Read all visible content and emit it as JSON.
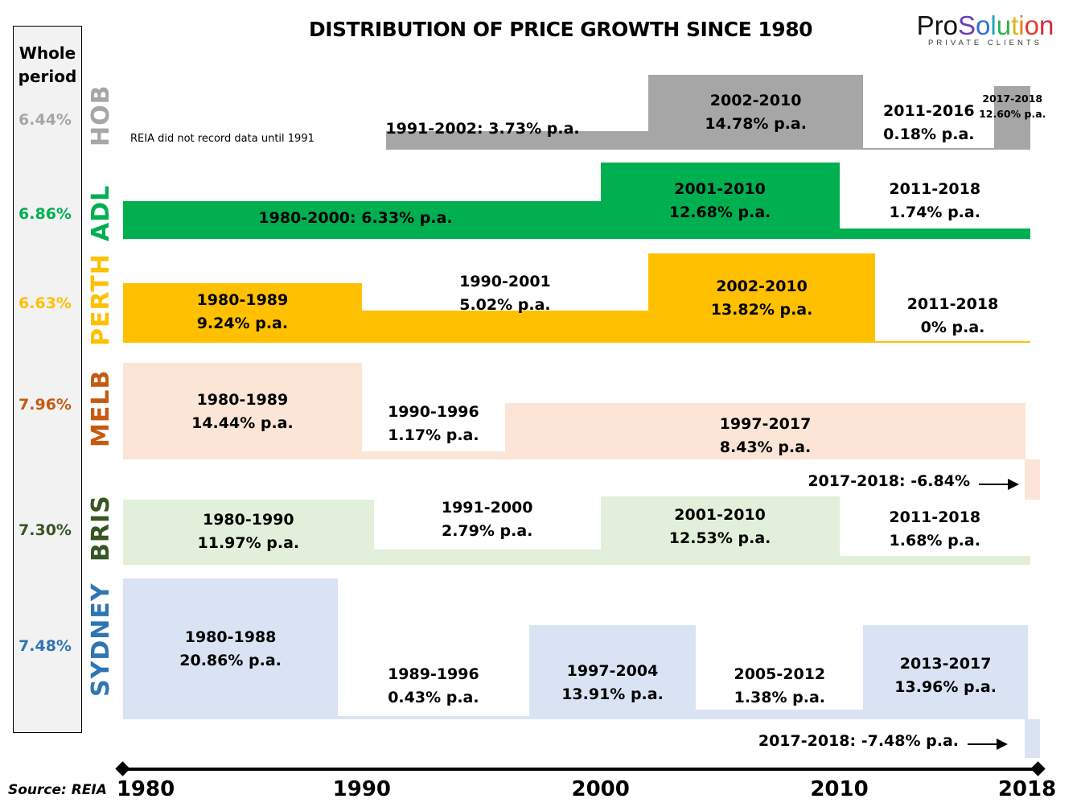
{
  "chart_data": {
    "type": "bar",
    "title": "DISTRIBUTION OF PRICE GROWTH SINCE 1980",
    "xlabel": "",
    "ylabel": "",
    "x_range": [
      1980,
      2018
    ],
    "x_ticks": [
      "1980",
      "1990",
      "2000",
      "2010",
      "2018"
    ],
    "whole_period_header": "Whole period",
    "source": "Source: REIA",
    "series": [
      {
        "name": "HOB",
        "color": "#a6a6a6",
        "label_color": "#a6a6a6",
        "whole_period": "6.44%",
        "note": "REIA did not record data until 1991",
        "segments": [
          {
            "start": 1991,
            "end": 2002,
            "value": 3.73,
            "label": "1991-2002: 3.73% p.a.",
            "inline": true
          },
          {
            "start": 2002,
            "end": 2011,
            "value": 14.78,
            "label_line1": "2002-2010",
            "label_line2": "14.78% p.a."
          },
          {
            "start": 2011,
            "end": 2016.5,
            "value": 0.18,
            "label_line1": "2011-2016",
            "label_line2": "0.18% p.a."
          },
          {
            "start": 2016.5,
            "end": 2018,
            "value": 12.6,
            "label_line1": "2017-2018",
            "label_line2": "12.60% p.a.",
            "small": true
          }
        ]
      },
      {
        "name": "ADL",
        "color": "#00b050",
        "label_color": "#00b050",
        "whole_period": "6.86%",
        "segments": [
          {
            "start": 1980,
            "end": 2000,
            "value": 6.33,
            "label": "1980-2000: 6.33% p.a.",
            "inline": true
          },
          {
            "start": 2000,
            "end": 2010,
            "value": 12.68,
            "label_line1": "2001-2010",
            "label_line2": "12.68% p.a."
          },
          {
            "start": 2010,
            "end": 2018,
            "value": 1.74,
            "label_line1": "2011-2018",
            "label_line2": "1.74% p.a."
          }
        ]
      },
      {
        "name": "PERTH",
        "color": "#ffc000",
        "label_color": "#ffc000",
        "whole_period": "6.63%",
        "segments": [
          {
            "start": 1980,
            "end": 1990,
            "value": 9.24,
            "label_line1": "1980-1989",
            "label_line2": "9.24% p.a."
          },
          {
            "start": 1990,
            "end": 2002,
            "value": 5.02,
            "label_line1": "1990-2001",
            "label_line2": "5.02% p.a."
          },
          {
            "start": 2002,
            "end": 2011.5,
            "value": 13.82,
            "label_line1": "2002-2010",
            "label_line2": "13.82% p.a."
          },
          {
            "start": 2011.5,
            "end": 2018,
            "value": 0,
            "label_line1": "2011-2018",
            "label_line2": "0% p.a."
          }
        ]
      },
      {
        "name": "MELB",
        "color": "#fbe5d6",
        "label_color": "#c55a11",
        "whole_period": "7.96%",
        "segments": [
          {
            "start": 1980,
            "end": 1990,
            "value": 14.44,
            "label_line1": "1980-1989",
            "label_line2": "14.44% p.a."
          },
          {
            "start": 1990,
            "end": 1996,
            "value": 1.17,
            "label_line1": "1990-1996",
            "label_line2": "1.17% p.a."
          },
          {
            "start": 1996,
            "end": 2017.8,
            "value": 8.43,
            "label_line1": "1997-2017",
            "label_line2": "8.43% p.a."
          },
          {
            "start": 2017.8,
            "end": 2018.4,
            "value": -6.84,
            "callout": "2017-2018: -6.84%"
          }
        ]
      },
      {
        "name": "BRIS",
        "color": "#e2efda",
        "label_color": "#375623",
        "whole_period": "7.30%",
        "segments": [
          {
            "start": 1980,
            "end": 1990.5,
            "value": 11.97,
            "label_line1": "1980-1990",
            "label_line2": "11.97% p.a."
          },
          {
            "start": 1990.5,
            "end": 2000,
            "value": 2.79,
            "label_line1": "1991-2000",
            "label_line2": "2.79% p.a."
          },
          {
            "start": 2000,
            "end": 2010,
            "value": 12.53,
            "label_line1": "2001-2010",
            "label_line2": "12.53% p.a."
          },
          {
            "start": 2010,
            "end": 2018,
            "value": 1.68,
            "label_line1": "2011-2018",
            "label_line2": "1.68% p.a."
          }
        ]
      },
      {
        "name": "SYDNEY",
        "color": "#dae3f3",
        "label_color": "#2e75b6",
        "whole_period": "7.48%",
        "segments": [
          {
            "start": 1980,
            "end": 1989,
            "value": 20.86,
            "label_line1": "1980-1988",
            "label_line2": "20.86% p.a."
          },
          {
            "start": 1989,
            "end": 1997,
            "value": 0.43,
            "label_line1": "1989-1996",
            "label_line2": "0.43% p.a."
          },
          {
            "start": 1997,
            "end": 2004,
            "value": 13.91,
            "label_line1": "1997-2004",
            "label_line2": "13.91% p.a."
          },
          {
            "start": 2004,
            "end": 2011,
            "value": 1.38,
            "label_line1": "2005-2012",
            "label_line2": "1.38% p.a."
          },
          {
            "start": 2011,
            "end": 2017.9,
            "value": 13.96,
            "label_line1": "2013-2017",
            "label_line2": "13.96% p.a."
          },
          {
            "start": 2017.9,
            "end": 2018.6,
            "value": -7.48,
            "callout": "2017-2018: -7.48% p.a."
          }
        ]
      }
    ]
  },
  "header": {
    "title": "DISTRIBUTION OF PRICE GROWTH SINCE 1980",
    "logo_main": "ProSolution",
    "logo_sub": "PRIVATE CLIENTS"
  }
}
